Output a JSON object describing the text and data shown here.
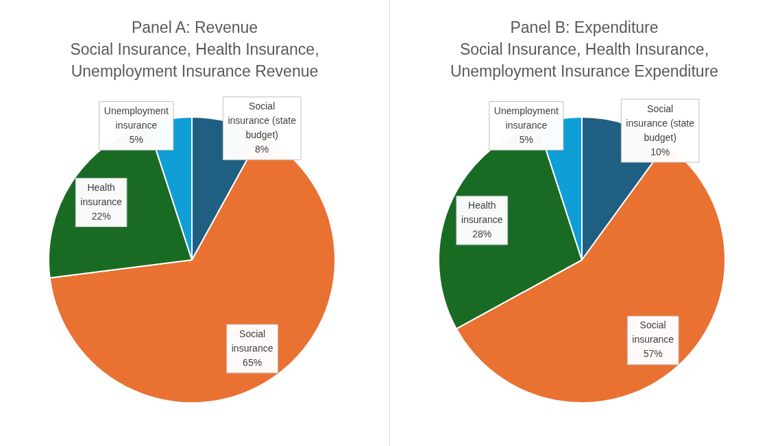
{
  "chart_data": [
    {
      "type": "pie",
      "title": "Panel A: Revenue",
      "subtitle": "Social Insurance, Health Insurance, Unemployment Insurance Revenue",
      "categories": [
        "Social insurance (state budget)",
        "Social insurance",
        "Health insurance",
        "Unemployment insurance"
      ],
      "values": [
        8,
        65,
        22,
        5
      ],
      "value_labels": [
        "8%",
        "65%",
        "22%",
        "5%"
      ],
      "colors": [
        "#1f5f82",
        "#e97132",
        "#196b24",
        "#0f9ed5"
      ],
      "legend": false
    },
    {
      "type": "pie",
      "title": "Panel B: Expenditure",
      "subtitle": "Social Insurance, Health Insurance, Unemployment Insurance Expenditure",
      "categories": [
        "Social insurance (state budget)",
        "Social insurance",
        "Health insurance",
        "Unemployment insurance"
      ],
      "values": [
        10,
        57,
        28,
        5
      ],
      "value_labels": [
        "10%",
        "57%",
        "28%",
        "5%"
      ],
      "colors": [
        "#1f5f82",
        "#e97132",
        "#196b24",
        "#0f9ed5"
      ],
      "legend": false
    }
  ]
}
